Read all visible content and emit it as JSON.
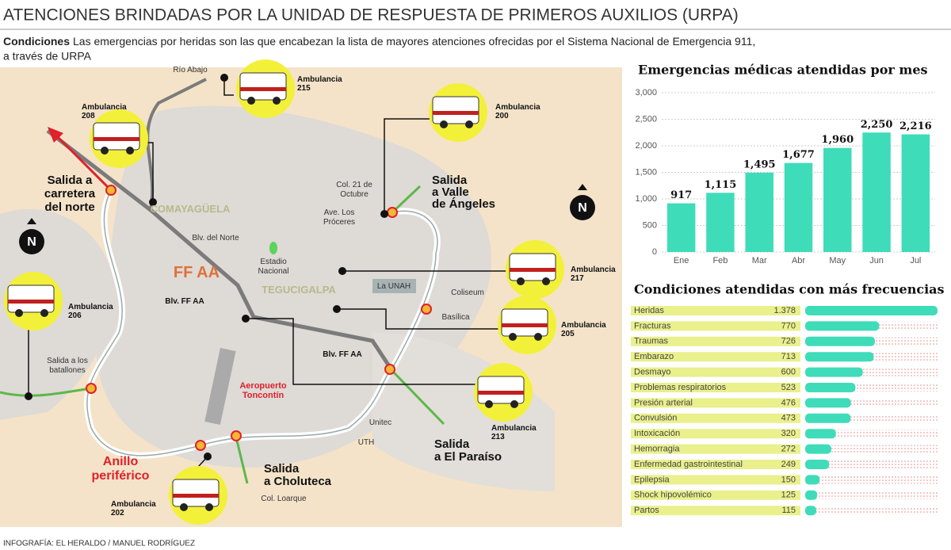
{
  "header": {
    "title": "ATENCIONES BRINDADAS POR LA UNIDAD DE RESPUESTA DE PRIMEROS AUXILIOS (URPA)",
    "lead": "Condiciones",
    "intro": [
      "Las emergencias por heridas son las que encabezan la lista de mayores atenciones ofrecidas por el Sistema Nacional de Emergencia 911,",
      "a través de URPA"
    ]
  },
  "map": {
    "labels": [
      [
        "Río Abajo"
      ],
      [
        "Salida a",
        "carretera",
        "del norte"
      ],
      [
        "COMAYAGÜELA"
      ],
      [
        "FF AA"
      ],
      [
        "Blv. FF AA"
      ],
      [
        "Blv. FF AA"
      ],
      [
        "Blv. del Norte"
      ],
      [
        "Estadio",
        "Nacional"
      ],
      [
        "TEGUCIGALPA"
      ],
      [
        "La UNAH"
      ],
      [
        "Coliseum"
      ],
      [
        "Basílica"
      ],
      [
        "Col. 21 de",
        "Octubre"
      ],
      [
        "Ave. Los",
        "Próceres"
      ],
      [
        "Salida",
        "a Valle",
        "de Ángeles"
      ],
      [
        "Salida a los",
        "batallones"
      ],
      [
        "Aeropuerto",
        "Toncontín"
      ],
      [
        "Anillo",
        "periférico"
      ],
      [
        "Salida",
        "a Choluteca"
      ],
      [
        "Col. Loarque"
      ],
      [
        "UTH"
      ],
      [
        "Unitec"
      ],
      [
        "Salida",
        "a El Paraíso"
      ]
    ],
    "ambulances": [
      [
        "Ambulancia",
        "215"
      ],
      [
        "Ambulancia",
        "208"
      ],
      [
        "Ambulancia",
        "200"
      ],
      [
        "Ambulancia",
        "217"
      ],
      [
        "Ambulancia",
        "206"
      ],
      [
        "Ambulancia",
        "205"
      ],
      [
        "Ambulancia",
        "213"
      ],
      [
        "Ambulancia",
        "202"
      ]
    ],
    "north": [
      "N",
      "N"
    ]
  },
  "chart_data": [
    {
      "type": "bar",
      "title": "Emergencias médicas atendidas por mes",
      "categories": [
        "Ene",
        "Feb",
        "Mar",
        "Abr",
        "May",
        "Jun",
        "Jul"
      ],
      "values": [
        917,
        1115,
        1495,
        1677,
        1960,
        2250,
        2216
      ],
      "value_labels": [
        "917",
        "1,115",
        "1,495",
        "1,677",
        "1,960",
        "2,250",
        "2,216"
      ],
      "color": "#3fdcb9",
      "ylim": [
        0,
        3000
      ],
      "yticks": [
        0,
        500,
        {
          "value": 1000,
          "label": "1,000"
        },
        {
          "value": 1500,
          "label": "1,500"
        },
        {
          "value": 2000,
          "label": "2,000"
        },
        {
          "value": 2500,
          "label": "2,500"
        },
        {
          "value": 3000,
          "label": "3,000"
        }
      ],
      "grid": true
    },
    {
      "type": "hbar",
      "title": "Condiciones atendidas con más frecuencias",
      "categories": [
        "Heridas",
        "Fracturas",
        "Traumas",
        "Embarazo",
        "Desmayo",
        "Problemas respiratorios",
        "Presión arterial",
        "Convulsión",
        "Intoxicación",
        "Hemorragia",
        "Enfermedad gastrointestinal",
        "Epilepsia",
        "Shock hipovolémico",
        "Partos"
      ],
      "values": [
        1378,
        770,
        726,
        713,
        600,
        523,
        476,
        473,
        320,
        272,
        249,
        150,
        125,
        115
      ],
      "value_labels": [
        "1.378",
        "770",
        "726",
        "713",
        "600",
        "523",
        "476",
        "473",
        "320",
        "272",
        "249",
        "150",
        "125",
        "115"
      ],
      "color": "#3fdcb9"
    }
  ],
  "footer": {
    "credit": "INFOGRAFÍA: EL HERALDO / MANUEL RODRÍGUEZ"
  }
}
